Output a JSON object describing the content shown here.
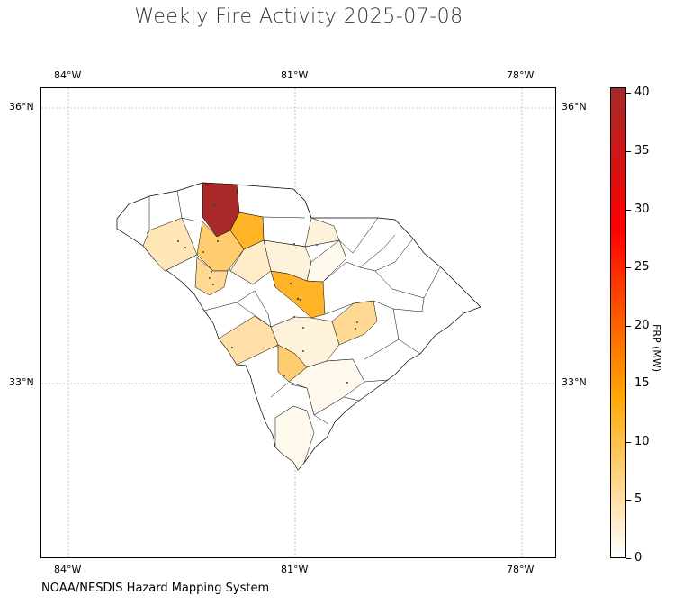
{
  "title": "Weekly Fire Activity 2025-07-08",
  "credit": "NOAA/NESDIS Hazard Mapping System",
  "colors": {
    "low": "#ffffff",
    "mid": "#ffa500",
    "high": "#ff0000",
    "top": "#a52a2a"
  },
  "longitude_ticks": [
    "84°W",
    "81°W",
    "78°W"
  ],
  "latitude_ticks": [
    "36°N",
    "33°N"
  ],
  "colorbar": {
    "label": "FRP (MW)",
    "range": [
      0,
      40.5
    ],
    "ticks": [
      "0",
      "5",
      "10",
      "15",
      "20",
      "25",
      "30",
      "35",
      "40"
    ]
  },
  "counties": [
    {
      "frp": 40
    },
    {
      "frp": 12
    },
    {
      "frp": 8
    },
    {
      "frp": 6
    },
    {
      "frp": 4
    },
    {
      "frp": 12
    },
    {
      "frp": 2
    },
    {
      "frp": 2
    },
    {
      "frp": 3
    },
    {
      "frp": 5
    },
    {
      "frp": 6
    },
    {
      "frp": 8
    },
    {
      "frp": 2
    },
    {
      "frp": 1
    },
    {
      "frp": 1
    },
    {
      "frp": 1
    }
  ]
}
